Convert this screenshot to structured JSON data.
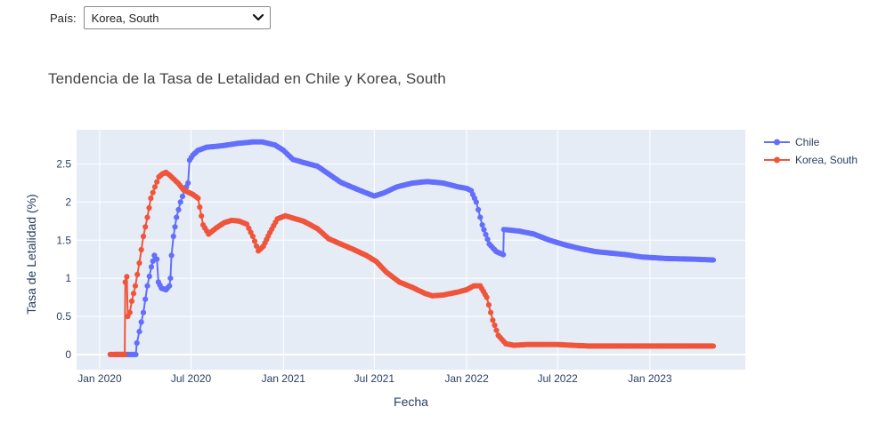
{
  "selector": {
    "label": "País:",
    "selected": "Korea, South"
  },
  "colors": {
    "chile": "#636efa",
    "korea": "#ef553b",
    "plot_bg": "#e5ecf6",
    "grid": "#ffffff"
  },
  "chart_data": {
    "type": "line",
    "title": "Tendencia de la Tasa de Letalidad en Chile y Korea, South",
    "xlabel": "Fecha",
    "ylabel": "Tasa de Letalidad (%)",
    "x_tick_labels": [
      "Jan 2020",
      "Jul 2020",
      "Jan 2021",
      "Jul 2021",
      "Jan 2022",
      "Jul 2022",
      "Jan 2023"
    ],
    "y_tick_labels": [
      "0",
      "0.5",
      "1",
      "1.5",
      "2",
      "2.5"
    ],
    "xlim": [
      "2019-11-16",
      "2023-07-10"
    ],
    "ylim": [
      -0.2,
      2.95
    ],
    "legend_position": "top-right",
    "grid": true,
    "series": [
      {
        "name": "Chile",
        "color_key": "chile",
        "points": [
          [
            "2020-02-01",
            0
          ],
          [
            "2020-03-03",
            0
          ],
          [
            "2020-03-13",
            0
          ],
          [
            "2020-03-15",
            0.15
          ],
          [
            "2020-03-20",
            0.3
          ],
          [
            "2020-03-28",
            0.55
          ],
          [
            "2020-04-05",
            0.9
          ],
          [
            "2020-04-13",
            1.15
          ],
          [
            "2020-04-19",
            1.3
          ],
          [
            "2020-04-24",
            1.25
          ],
          [
            "2020-04-27",
            0.95
          ],
          [
            "2020-05-03",
            0.87
          ],
          [
            "2020-05-12",
            0.85
          ],
          [
            "2020-05-19",
            0.9
          ],
          [
            "2020-05-21",
            1.0
          ],
          [
            "2020-05-23",
            1.3
          ],
          [
            "2020-05-27",
            1.55
          ],
          [
            "2020-06-02",
            1.8
          ],
          [
            "2020-06-10",
            2.0
          ],
          [
            "2020-06-18",
            2.15
          ],
          [
            "2020-06-25",
            2.25
          ],
          [
            "2020-06-28",
            2.55
          ],
          [
            "2020-07-05",
            2.62
          ],
          [
            "2020-07-15",
            2.68
          ],
          [
            "2020-08-01",
            2.72
          ],
          [
            "2020-09-01",
            2.74
          ],
          [
            "2020-10-01",
            2.77
          ],
          [
            "2020-11-01",
            2.79
          ],
          [
            "2020-11-20",
            2.79
          ],
          [
            "2020-12-15",
            2.75
          ],
          [
            "2021-01-01",
            2.68
          ],
          [
            "2021-01-20",
            2.56
          ],
          [
            "2021-02-10",
            2.52
          ],
          [
            "2021-03-10",
            2.47
          ],
          [
            "2021-04-01",
            2.37
          ],
          [
            "2021-04-25",
            2.26
          ],
          [
            "2021-05-20",
            2.19
          ],
          [
            "2021-06-15",
            2.12
          ],
          [
            "2021-07-01",
            2.08
          ],
          [
            "2021-07-20",
            2.12
          ],
          [
            "2021-08-15",
            2.2
          ],
          [
            "2021-09-15",
            2.25
          ],
          [
            "2021-10-15",
            2.27
          ],
          [
            "2021-11-15",
            2.25
          ],
          [
            "2021-12-15",
            2.2
          ],
          [
            "2022-01-01",
            2.18
          ],
          [
            "2022-01-10",
            2.15
          ],
          [
            "2022-01-20",
            2.0
          ],
          [
            "2022-02-01",
            1.7
          ],
          [
            "2022-02-15",
            1.45
          ],
          [
            "2022-03-01",
            1.35
          ],
          [
            "2022-03-15",
            1.31
          ],
          [
            "2022-03-16",
            1.64
          ],
          [
            "2022-04-15",
            1.62
          ],
          [
            "2022-05-15",
            1.58
          ],
          [
            "2022-06-15",
            1.5
          ],
          [
            "2022-07-15",
            1.44
          ],
          [
            "2022-08-15",
            1.39
          ],
          [
            "2022-09-15",
            1.35
          ],
          [
            "2022-10-15",
            1.33
          ],
          [
            "2022-11-15",
            1.31
          ],
          [
            "2022-12-15",
            1.28
          ],
          [
            "2023-02-01",
            1.26
          ],
          [
            "2023-04-01",
            1.25
          ],
          [
            "2023-05-07",
            1.24
          ]
        ]
      },
      {
        "name": "Korea, South",
        "color_key": "korea",
        "points": [
          [
            "2020-01-22",
            0
          ],
          [
            "2020-02-20",
            0
          ],
          [
            "2020-02-21",
            0.95
          ],
          [
            "2020-02-24",
            1.02
          ],
          [
            "2020-02-26",
            0.5
          ],
          [
            "2020-03-01",
            0.55
          ],
          [
            "2020-03-05",
            0.7
          ],
          [
            "2020-03-12",
            0.9
          ],
          [
            "2020-03-20",
            1.2
          ],
          [
            "2020-03-28",
            1.55
          ],
          [
            "2020-04-05",
            1.8
          ],
          [
            "2020-04-12",
            2.05
          ],
          [
            "2020-04-20",
            2.2
          ],
          [
            "2020-04-28",
            2.33
          ],
          [
            "2020-05-05",
            2.37
          ],
          [
            "2020-05-12",
            2.39
          ],
          [
            "2020-05-20",
            2.35
          ],
          [
            "2020-05-28",
            2.3
          ],
          [
            "2020-06-05",
            2.25
          ],
          [
            "2020-06-15",
            2.17
          ],
          [
            "2020-06-25",
            2.13
          ],
          [
            "2020-07-05",
            2.1
          ],
          [
            "2020-07-15",
            2.05
          ],
          [
            "2020-07-25",
            1.7
          ],
          [
            "2020-08-05",
            1.58
          ],
          [
            "2020-08-20",
            1.66
          ],
          [
            "2020-09-05",
            1.73
          ],
          [
            "2020-09-20",
            1.76
          ],
          [
            "2020-10-05",
            1.75
          ],
          [
            "2020-10-20",
            1.71
          ],
          [
            "2020-11-01",
            1.55
          ],
          [
            "2020-11-12",
            1.36
          ],
          [
            "2020-11-22",
            1.42
          ],
          [
            "2020-12-05",
            1.6
          ],
          [
            "2020-12-20",
            1.78
          ],
          [
            "2021-01-05",
            1.82
          ],
          [
            "2021-01-20",
            1.79
          ],
          [
            "2021-02-10",
            1.75
          ],
          [
            "2021-03-10",
            1.65
          ],
          [
            "2021-04-01",
            1.52
          ],
          [
            "2021-04-25",
            1.45
          ],
          [
            "2021-05-20",
            1.38
          ],
          [
            "2021-06-15",
            1.3
          ],
          [
            "2021-07-05",
            1.22
          ],
          [
            "2021-07-25",
            1.08
          ],
          [
            "2021-08-20",
            0.95
          ],
          [
            "2021-09-15",
            0.88
          ],
          [
            "2021-10-10",
            0.8
          ],
          [
            "2021-10-25",
            0.77
          ],
          [
            "2021-11-15",
            0.78
          ],
          [
            "2021-12-15",
            0.82
          ],
          [
            "2022-01-01",
            0.85
          ],
          [
            "2022-01-15",
            0.9
          ],
          [
            "2022-01-28",
            0.9
          ],
          [
            "2022-02-10",
            0.75
          ],
          [
            "2022-02-22",
            0.45
          ],
          [
            "2022-03-05",
            0.25
          ],
          [
            "2022-03-20",
            0.14
          ],
          [
            "2022-04-05",
            0.12
          ],
          [
            "2022-05-01",
            0.13
          ],
          [
            "2022-06-01",
            0.13
          ],
          [
            "2022-07-01",
            0.13
          ],
          [
            "2022-08-01",
            0.12
          ],
          [
            "2022-09-01",
            0.11
          ],
          [
            "2022-11-01",
            0.11
          ],
          [
            "2023-01-01",
            0.11
          ],
          [
            "2023-03-01",
            0.11
          ],
          [
            "2023-05-07",
            0.11
          ]
        ]
      }
    ]
  }
}
